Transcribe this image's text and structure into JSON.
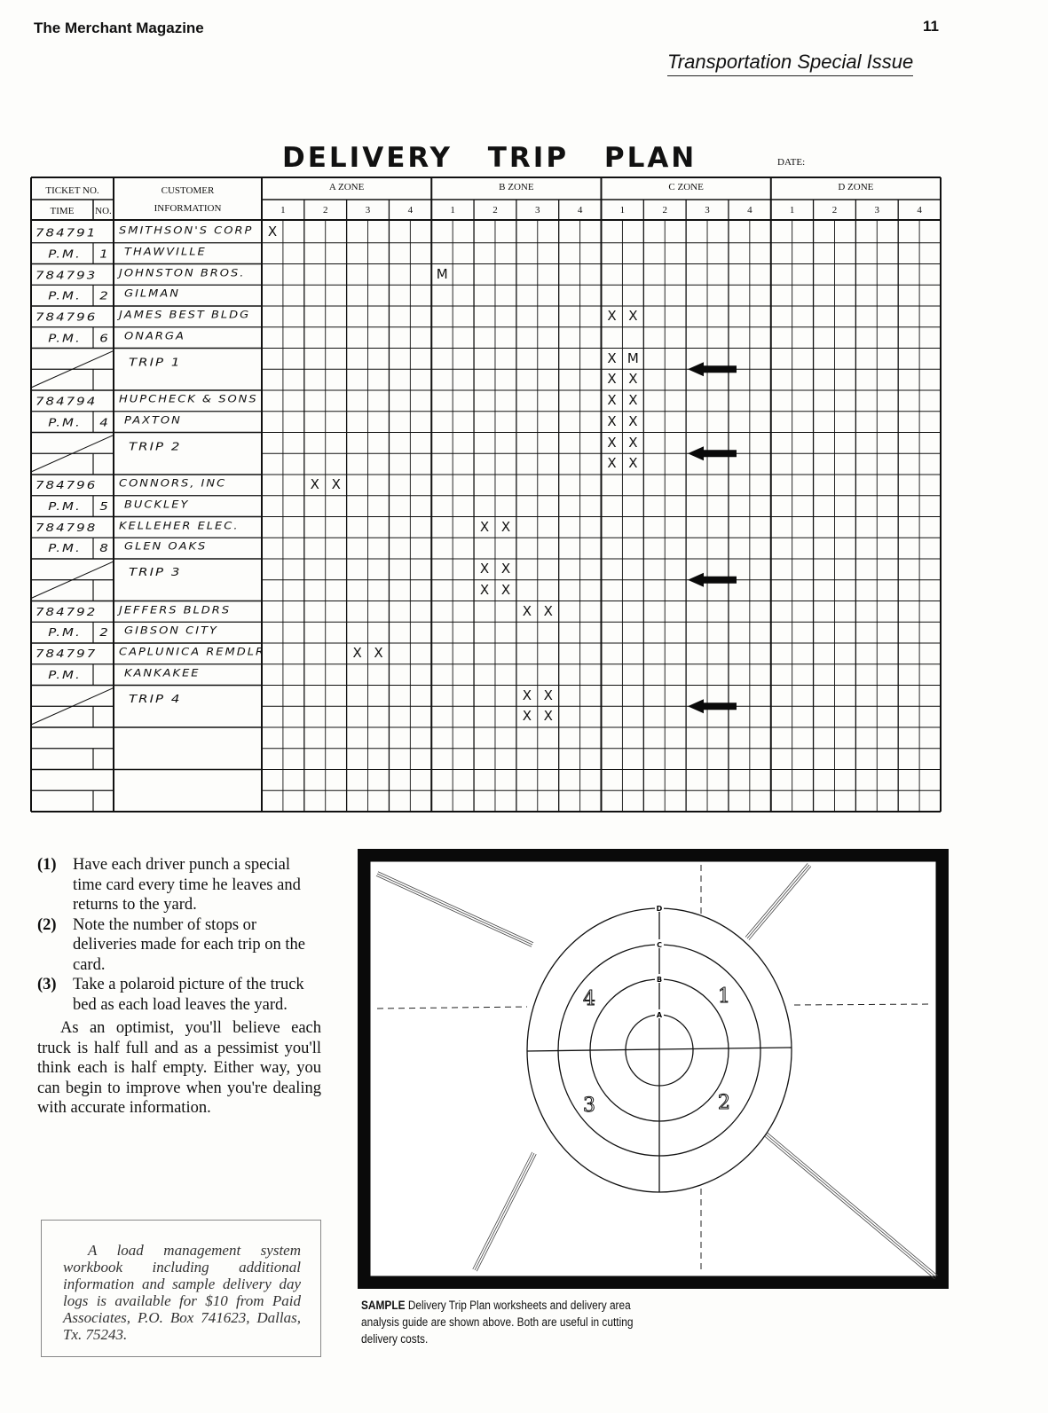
{
  "header": {
    "magazine": "The Merchant Magazine",
    "page_number": "11",
    "issue": "Transportation Special Issue"
  },
  "form": {
    "title": "DELIVERY TRIP PLAN",
    "date_label": "DATE:",
    "col_ticket": "TICKET NO.",
    "col_time": "TIME",
    "col_no": "NO.",
    "col_customer_1": "CUSTOMER",
    "col_customer_2": "INFORMATION",
    "zones": [
      "A ZONE",
      "B ZONE",
      "C ZONE",
      "D ZONE"
    ],
    "zone_columns": [
      "1",
      "2",
      "3",
      "4"
    ],
    "entries": [
      {
        "ticket": "784791",
        "time": "P.M.",
        "no": "1",
        "customer": "SMITHSON'S CORP",
        "city": "THAWVILLE",
        "marks": [
          [
            0,
            0,
            "X"
          ]
        ]
      },
      {
        "ticket": "784793",
        "time": "P.M.",
        "no": "2",
        "customer": "JOHNSTON BROS.",
        "city": "GILMAN",
        "marks": [
          [
            0,
            8,
            "M"
          ]
        ]
      },
      {
        "ticket": "784796",
        "time": "P.M.",
        "no": "6",
        "customer": "JAMES BEST BLDG",
        "city": "ONARGA",
        "marks": [
          [
            0,
            16,
            "X"
          ],
          [
            0,
            17,
            "X"
          ]
        ]
      },
      {
        "trip": "TRIP 1",
        "marks": [
          [
            0,
            16,
            "X"
          ],
          [
            0,
            17,
            "M"
          ],
          [
            1,
            16,
            "X"
          ],
          [
            1,
            17,
            "X"
          ]
        ]
      },
      {
        "ticket": "784794",
        "time": "P.M.",
        "no": "4",
        "customer": "HUPCHECK & SONS",
        "city": "PAXTON",
        "marks": [
          [
            0,
            16,
            "X"
          ],
          [
            0,
            17,
            "X"
          ],
          [
            1,
            16,
            "X"
          ],
          [
            1,
            17,
            "X"
          ]
        ]
      },
      {
        "trip": "TRIP 2",
        "marks": [
          [
            0,
            16,
            "X"
          ],
          [
            0,
            17,
            "X"
          ],
          [
            1,
            16,
            "X"
          ],
          [
            1,
            17,
            "X"
          ]
        ]
      },
      {
        "ticket": "784796",
        "time": "P.M.",
        "no": "5",
        "customer": "CONNORS, INC",
        "city": "BUCKLEY",
        "marks": [
          [
            0,
            2,
            "X"
          ],
          [
            0,
            3,
            "X"
          ]
        ]
      },
      {
        "ticket": "784798",
        "time": "P.M.",
        "no": "8",
        "customer": "KELLEHER ELEC.",
        "city": "GLEN OAKS",
        "marks": [
          [
            0,
            10,
            "X"
          ],
          [
            0,
            11,
            "X"
          ]
        ]
      },
      {
        "trip": "TRIP 3",
        "marks": [
          [
            0,
            10,
            "X"
          ],
          [
            0,
            11,
            "X"
          ],
          [
            1,
            10,
            "X"
          ],
          [
            1,
            11,
            "X"
          ]
        ]
      },
      {
        "ticket": "784792",
        "time": "P.M.",
        "no": "2",
        "customer": "JEFFERS BLDRS",
        "city": "GIBSON CITY",
        "marks": [
          [
            0,
            12,
            "X"
          ],
          [
            0,
            13,
            "X"
          ]
        ]
      },
      {
        "ticket": "784797",
        "time": "P.M.",
        "no": "",
        "customer": "CAPLUNICA REMDLR",
        "city": "KANKAKEE",
        "marks": [
          [
            0,
            4,
            "X"
          ],
          [
            0,
            5,
            "X"
          ]
        ]
      },
      {
        "trip": "TRIP 4",
        "marks": [
          [
            0,
            12,
            "X"
          ],
          [
            0,
            13,
            "X"
          ],
          [
            1,
            12,
            "X"
          ],
          [
            1,
            13,
            "X"
          ]
        ]
      },
      {
        "blank": true,
        "marks": []
      },
      {
        "blank": true,
        "marks": []
      }
    ]
  },
  "steps": [
    {
      "num": "(1)",
      "text": "Have each driver punch a special time card every time he leaves and returns to the yard."
    },
    {
      "num": "(2)",
      "text": "Note the number of stops or deliveries made for each trip on the card."
    },
    {
      "num": "(3)",
      "text": "Take a polaroid picture of the truck bed as each load leaves the yard."
    }
  ],
  "paragraph": "As an optimist, you'll believe each truck is half full and as a pessimist you'll think each is half empty. Either way, you can begin to improve when you're dealing with accurate information.",
  "note": "A load management system workbook including additional information and sample delivery day logs is available for $10 from Paid Associates, P.O. Box 741623, Dallas, Tx. 75243.",
  "diagram": {
    "ring_labels": [
      "A",
      "B",
      "C",
      "D"
    ],
    "quadrant_labels": [
      "1",
      "2",
      "3",
      "4"
    ]
  },
  "caption": {
    "lead": "SAMPLE",
    "text": " Delivery Trip Plan worksheets and delivery area analysis guide are shown above. Both are useful in cutting delivery costs."
  }
}
